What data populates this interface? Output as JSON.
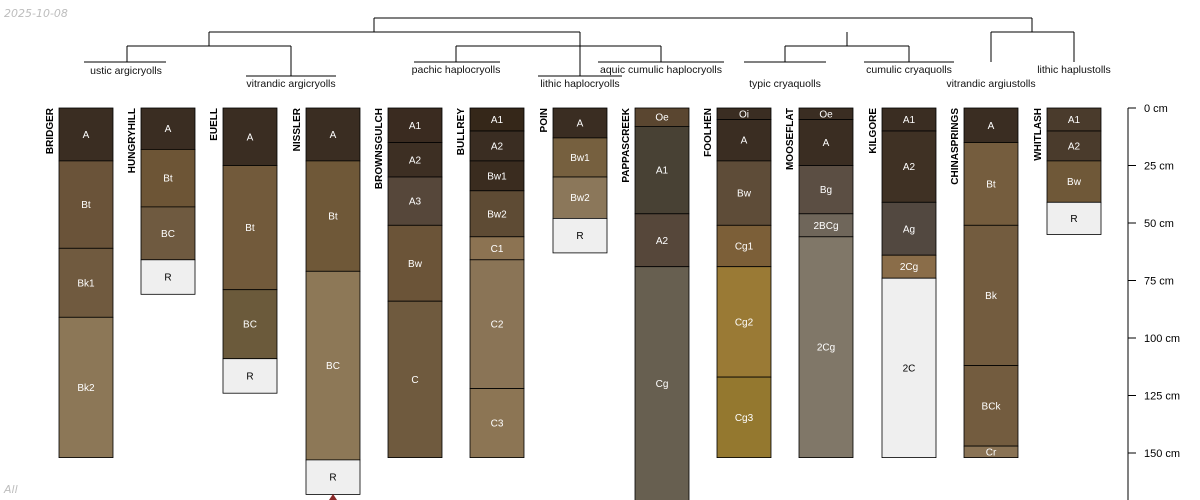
{
  "header": {
    "date": "2025-10-08"
  },
  "footer": {
    "label": "All"
  },
  "chart_data": {
    "type": "soil-profile-sketch",
    "depth_unit": "cm",
    "depth_ticks": [
      0,
      25,
      50,
      75,
      100,
      125,
      150
    ],
    "depth_tick_labels": [
      "0 cm",
      "25 cm",
      "50 cm",
      "75 cm",
      "100 cm",
      "125 cm",
      "150 cm"
    ],
    "dendrogram_labels": [
      "ustic argicryolls",
      "vitrandic argicryolls",
      "pachic haplocryolls",
      "lithic haplocryolls",
      "aquic cumulic haplocryolls",
      "typic cryaquolls",
      "cumulic cryaquolls",
      "vitrandic argiustolls",
      "lithic haplustolls"
    ],
    "profiles": [
      {
        "name": "BRIDGER",
        "horizons": [
          {
            "name": "A",
            "top": 0,
            "bottom": 23,
            "color": "#3a2d22",
            "text": "#ffffff"
          },
          {
            "name": "Bt",
            "top": 23,
            "bottom": 61,
            "color": "#6a5339",
            "text": "#ffffff"
          },
          {
            "name": "Bk1",
            "top": 61,
            "bottom": 91,
            "color": "#705a3f",
            "text": "#ffffff"
          },
          {
            "name": "Bk2",
            "top": 91,
            "bottom": 152,
            "color": "#8c7757",
            "text": "#ffffff"
          }
        ]
      },
      {
        "name": "HUNGRYHILL",
        "horizons": [
          {
            "name": "A",
            "top": 0,
            "bottom": 18,
            "color": "#3a2d22",
            "text": "#ffffff"
          },
          {
            "name": "Bt",
            "top": 18,
            "bottom": 43,
            "color": "#6d5536",
            "text": "#ffffff"
          },
          {
            "name": "BC",
            "top": 43,
            "bottom": 66,
            "color": "#6f5a40",
            "text": "#ffffff"
          },
          {
            "name": "R",
            "top": 66,
            "bottom": 81,
            "color": "#efefef",
            "text": "#000000"
          }
        ]
      },
      {
        "name": "EUELL",
        "horizons": [
          {
            "name": "A",
            "top": 0,
            "bottom": 25,
            "color": "#3a2d22",
            "text": "#ffffff"
          },
          {
            "name": "Bt",
            "top": 25,
            "bottom": 79,
            "color": "#725a3b",
            "text": "#ffffff"
          },
          {
            "name": "BC",
            "top": 79,
            "bottom": 109,
            "color": "#6b5a3b",
            "text": "#ffffff"
          },
          {
            "name": "R",
            "top": 109,
            "bottom": 124,
            "color": "#efefef",
            "text": "#000000"
          }
        ]
      },
      {
        "name": "NISSLER",
        "horizons": [
          {
            "name": "A",
            "top": 0,
            "bottom": 23,
            "color": "#3a2d22",
            "text": "#ffffff"
          },
          {
            "name": "Bt",
            "top": 23,
            "bottom": 71,
            "color": "#6f5838",
            "text": "#ffffff"
          },
          {
            "name": "BC",
            "top": 71,
            "bottom": 153,
            "color": "#8d7857",
            "text": "#ffffff"
          },
          {
            "name": "R",
            "top": 153,
            "bottom": 168,
            "color": "#efefef",
            "text": "#000000"
          }
        ]
      },
      {
        "name": "BROWNSGULCH",
        "horizons": [
          {
            "name": "A1",
            "top": 0,
            "bottom": 15,
            "color": "#3a2b20",
            "text": "#ffffff"
          },
          {
            "name": "A2",
            "top": 15,
            "bottom": 30,
            "color": "#3d2f23",
            "text": "#ffffff"
          },
          {
            "name": "A3",
            "top": 30,
            "bottom": 51,
            "color": "#56473a",
            "text": "#ffffff"
          },
          {
            "name": "Bw",
            "top": 51,
            "bottom": 84,
            "color": "#6b5438",
            "text": "#ffffff"
          },
          {
            "name": "C",
            "top": 84,
            "bottom": 152,
            "color": "#6f5a3e",
            "text": "#ffffff"
          }
        ]
      },
      {
        "name": "BULLREY",
        "horizons": [
          {
            "name": "A1",
            "top": 0,
            "bottom": 10,
            "color": "#352719",
            "text": "#ffffff"
          },
          {
            "name": "A2",
            "top": 10,
            "bottom": 23,
            "color": "#3a2d22",
            "text": "#ffffff"
          },
          {
            "name": "Bw1",
            "top": 23,
            "bottom": 36,
            "color": "#3a2c1f",
            "text": "#ffffff"
          },
          {
            "name": "Bw2",
            "top": 36,
            "bottom": 56,
            "color": "#5e4b34",
            "text": "#ffffff"
          },
          {
            "name": "C1",
            "top": 56,
            "bottom": 66,
            "color": "#8c7352",
            "text": "#ffffff"
          },
          {
            "name": "C2",
            "top": 66,
            "bottom": 122,
            "color": "#8a7456",
            "text": "#ffffff"
          },
          {
            "name": "C3",
            "top": 122,
            "bottom": 152,
            "color": "#8c7554",
            "text": "#ffffff"
          }
        ]
      },
      {
        "name": "POIN",
        "horizons": [
          {
            "name": "A",
            "top": 0,
            "bottom": 13,
            "color": "#3a2d22",
            "text": "#ffffff"
          },
          {
            "name": "Bw1",
            "top": 13,
            "bottom": 30,
            "color": "#76603f",
            "text": "#ffffff"
          },
          {
            "name": "Bw2",
            "top": 30,
            "bottom": 48,
            "color": "#8b775a",
            "text": "#ffffff"
          },
          {
            "name": "R",
            "top": 48,
            "bottom": 63,
            "color": "#efefef",
            "text": "#000000"
          }
        ]
      },
      {
        "name": "PAPPASCREEK",
        "horizons": [
          {
            "name": "Oe",
            "top": 0,
            "bottom": 8,
            "color": "#5a4630",
            "text": "#ffffff"
          },
          {
            "name": "A1",
            "top": 8,
            "bottom": 46,
            "color": "#484134",
            "text": "#ffffff"
          },
          {
            "name": "A2",
            "top": 46,
            "bottom": 69,
            "color": "#56473a",
            "text": "#ffffff"
          },
          {
            "name": "Cg",
            "top": 69,
            "bottom": 175,
            "color": "#675f50",
            "text": "#ffffff"
          }
        ]
      },
      {
        "name": "FOOLHEN",
        "horizons": [
          {
            "name": "Oi",
            "top": 0,
            "bottom": 5,
            "color": "#3a2d22",
            "text": "#ffffff"
          },
          {
            "name": "A",
            "top": 5,
            "bottom": 23,
            "color": "#3a2d22",
            "text": "#ffffff"
          },
          {
            "name": "Bw",
            "top": 23,
            "bottom": 51,
            "color": "#5e4c38",
            "text": "#ffffff"
          },
          {
            "name": "Cg1",
            "top": 51,
            "bottom": 69,
            "color": "#7c5f38",
            "text": "#ffffff"
          },
          {
            "name": "Cg2",
            "top": 69,
            "bottom": 117,
            "color": "#9a7a35",
            "text": "#ffffff"
          },
          {
            "name": "Cg3",
            "top": 117,
            "bottom": 152,
            "color": "#94782f",
            "text": "#ffffff"
          }
        ]
      },
      {
        "name": "MOOSEFLAT",
        "horizons": [
          {
            "name": "Oe",
            "top": 0,
            "bottom": 5,
            "color": "#3a2d22",
            "text": "#ffffff"
          },
          {
            "name": "A",
            "top": 5,
            "bottom": 25,
            "color": "#3a2d22",
            "text": "#ffffff"
          },
          {
            "name": "Bg",
            "top": 25,
            "bottom": 46,
            "color": "#5b4e43",
            "text": "#ffffff"
          },
          {
            "name": "2BCg",
            "top": 46,
            "bottom": 56,
            "color": "#6f665a",
            "text": "#ffffff"
          },
          {
            "name": "2Cg",
            "top": 56,
            "bottom": 152,
            "color": "#807768",
            "text": "#ffffff"
          }
        ]
      },
      {
        "name": "KILGORE",
        "horizons": [
          {
            "name": "A1",
            "top": 0,
            "bottom": 10,
            "color": "#3a2d22",
            "text": "#ffffff"
          },
          {
            "name": "A2",
            "top": 10,
            "bottom": 41,
            "color": "#3f3124",
            "text": "#ffffff"
          },
          {
            "name": "Ag",
            "top": 41,
            "bottom": 64,
            "color": "#524840",
            "text": "#ffffff"
          },
          {
            "name": "2Cg",
            "top": 64,
            "bottom": 74,
            "color": "#8a6d49",
            "text": "#ffffff"
          },
          {
            "name": "2C",
            "top": 74,
            "bottom": 152,
            "color": "#efefef",
            "text": "#000000"
          }
        ]
      },
      {
        "name": "CHINASPRINGS",
        "horizons": [
          {
            "name": "A",
            "top": 0,
            "bottom": 15,
            "color": "#3a2d22",
            "text": "#ffffff"
          },
          {
            "name": "Bt",
            "top": 15,
            "bottom": 51,
            "color": "#755d3e",
            "text": "#ffffff"
          },
          {
            "name": "Bk",
            "top": 51,
            "bottom": 112,
            "color": "#735c3f",
            "text": "#ffffff"
          },
          {
            "name": "BCk",
            "top": 112,
            "bottom": 147,
            "color": "#735c3f",
            "text": "#ffffff"
          },
          {
            "name": "Cr",
            "top": 147,
            "bottom": 152,
            "color": "#8a7355",
            "text": "#ffffff"
          }
        ]
      },
      {
        "name": "WHITLASH",
        "horizons": [
          {
            "name": "A1",
            "top": 0,
            "bottom": 10,
            "color": "#4a3b2c",
            "text": "#ffffff"
          },
          {
            "name": "A2",
            "top": 10,
            "bottom": 23,
            "color": "#4a3b2c",
            "text": "#ffffff"
          },
          {
            "name": "Bw",
            "top": 23,
            "bottom": 41,
            "color": "#6f5838",
            "text": "#ffffff"
          },
          {
            "name": "R",
            "top": 41,
            "bottom": 55,
            "color": "#efefef",
            "text": "#000000"
          }
        ]
      }
    ]
  }
}
